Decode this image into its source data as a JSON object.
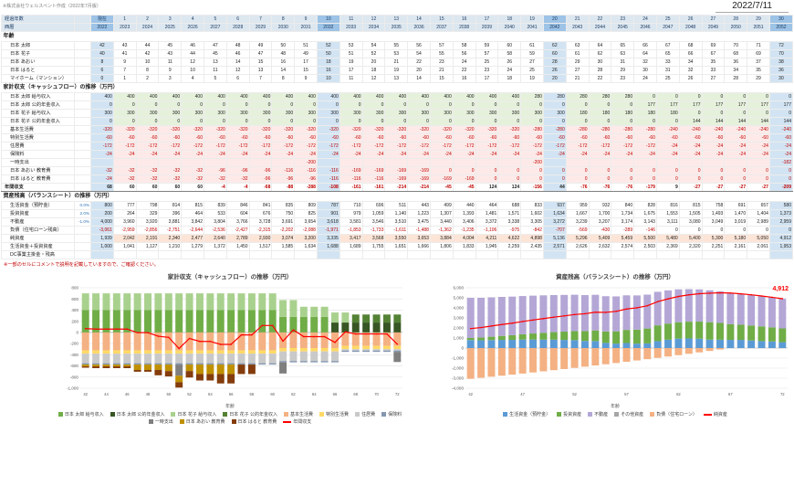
{
  "header": {
    "credit": "※株式会社ウェルスペント作成（2022年7月版）",
    "date": "2022/7/11"
  },
  "table": {
    "row_labels": {
      "elapsed": "経過年数",
      "year": "西暦",
      "age_section": "年齢"
    },
    "elapsed": [
      "現在",
      "1",
      "2",
      "3",
      "4",
      "5",
      "6",
      "7",
      "8",
      "9",
      "10",
      "11",
      "12",
      "13",
      "14",
      "15",
      "16",
      "17",
      "18",
      "19",
      "20",
      "21",
      "22",
      "23",
      "24",
      "25",
      "26",
      "27",
      "28",
      "29",
      "30"
    ],
    "years": [
      "2022",
      "2023",
      "2024",
      "2025",
      "2026",
      "2027",
      "2028",
      "2029",
      "2030",
      "2031",
      "2032",
      "2033",
      "2034",
      "2035",
      "2036",
      "2037",
      "2038",
      "2039",
      "2040",
      "2041",
      "2042",
      "2043",
      "2044",
      "2045",
      "2046",
      "2047",
      "2048",
      "2049",
      "2050",
      "2051",
      "2052"
    ],
    "highlight_cols": [
      0,
      10,
      20,
      30
    ],
    "age_rows": [
      {
        "label": "日本 太郎",
        "values": [
          42,
          43,
          44,
          45,
          46,
          47,
          48,
          49,
          50,
          51,
          52,
          53,
          54,
          55,
          56,
          57,
          58,
          59,
          60,
          61,
          62,
          63,
          64,
          65,
          66,
          67,
          68,
          69,
          70,
          71,
          72
        ]
      },
      {
        "label": "日本 花子",
        "values": [
          40,
          41,
          42,
          43,
          44,
          45,
          46,
          47,
          48,
          49,
          50,
          51,
          52,
          53,
          54,
          55,
          56,
          57,
          58,
          59,
          60,
          61,
          62,
          63,
          64,
          65,
          66,
          67,
          68,
          69,
          70
        ]
      },
      {
        "label": "日本 あおい",
        "values": [
          8,
          9,
          10,
          11,
          12,
          13,
          14,
          15,
          16,
          17,
          18,
          19,
          20,
          21,
          22,
          23,
          24,
          25,
          26,
          27,
          28,
          29,
          30,
          31,
          32,
          33,
          34,
          35,
          36,
          37,
          38
        ]
      },
      {
        "label": "日本 はると",
        "values": [
          6,
          7,
          8,
          9,
          10,
          11,
          12,
          13,
          14,
          15,
          16,
          17,
          18,
          19,
          20,
          21,
          22,
          23,
          24,
          25,
          26,
          27,
          28,
          29,
          30,
          31,
          32,
          33,
          34,
          35,
          36
        ]
      },
      {
        "label": "マイホーム（マンション）",
        "values": [
          0,
          1,
          2,
          3,
          4,
          5,
          6,
          7,
          8,
          9,
          10,
          11,
          12,
          13,
          14,
          15,
          16,
          17,
          18,
          19,
          20,
          21,
          22,
          23,
          24,
          25,
          26,
          27,
          28,
          29,
          30
        ]
      }
    ],
    "cashflow": {
      "title": "家計収支（キャッシュフロー）の推移（万円）",
      "income_rows": [
        {
          "label": "日本 太郎 給与収入",
          "ref": "chart_data.cashflow_chart.series.0.values"
        },
        {
          "label": "日本 太郎 公的年金収入",
          "ref": "chart_data.cashflow_chart.series.1.values"
        },
        {
          "label": "日本 花子 給与収入",
          "ref": "chart_data.cashflow_chart.series.2.values"
        },
        {
          "label": "日本 花子 公的年金収入",
          "ref": "chart_data.cashflow_chart.series.3.values"
        }
      ],
      "expense_rows": [
        {
          "label": "基本生活費",
          "ref": "chart_data.cashflow_chart.series.4.values"
        },
        {
          "label": "特別生活費",
          "ref": "chart_data.cashflow_chart.series.5.values"
        },
        {
          "label": "住居費",
          "ref": "chart_data.cashflow_chart.series.6.values"
        },
        {
          "label": "保険料",
          "ref": "chart_data.cashflow_chart.series.7.values"
        },
        {
          "label": "一時支出",
          "ref": "chart_data.cashflow_chart.series.8.values"
        },
        {
          "label": "日本 あおい 教育費",
          "ref": "chart_data.cashflow_chart.series.9.values"
        },
        {
          "label": "日本 はると 教育費",
          "ref": "chart_data.cashflow_chart.series.10.values"
        }
      ],
      "total_row": {
        "label": "年間収支",
        "ref": "chart_data.cashflow_chart.line.values"
      }
    },
    "balance": {
      "title": "資産残高（バランスシート）の推移（万円）",
      "rows": [
        {
          "label": "生活資金（預貯金）",
          "rate": "0.0%",
          "ref": "chart_data.balance_chart.series.0.values"
        },
        {
          "label": "投資資産",
          "rate": "2.0%",
          "ref": "chart_data.balance_chart.series.1.values"
        },
        {
          "label": "不動産",
          "rate": "-1.0%",
          "ref": "chart_data.balance_chart.series.2.values"
        },
        {
          "label": "負債（住宅ローン残高）",
          "rate": "",
          "ref": "chart_data.balance_chart.series.4.values"
        },
        {
          "label": "純資産",
          "rate": "",
          "ref": "chart_data.balance_chart.line.values",
          "emphasis": true
        },
        {
          "label": "生活資金＋投資資産",
          "rate": "",
          "values": [
            1000,
            1041,
            1127,
            1210,
            1279,
            1372,
            1450,
            1517,
            1585,
            1634,
            1688,
            1689,
            1755,
            1651,
            1666,
            1806,
            1833,
            1945,
            2259,
            2435,
            2571,
            2626,
            2632,
            2574,
            2503,
            2369,
            2320,
            2251,
            2161,
            2061,
            1953
          ]
        },
        {
          "label": "DC事業主掛金・残高",
          "rate": "",
          "values": null
        }
      ]
    },
    "footnote": "※一部のセルにコメントで説明を記載していますので、ご確認ください。"
  },
  "chart_data": {
    "cashflow_chart": {
      "type": "bar",
      "stacked": true,
      "title": "家計収支（キャッシュフロー）の推移（万円）",
      "xlabel": "年齢",
      "x": [
        42,
        43,
        44,
        45,
        46,
        47,
        48,
        49,
        50,
        51,
        52,
        53,
        54,
        55,
        56,
        57,
        58,
        59,
        60,
        61,
        62,
        63,
        64,
        65,
        66,
        67,
        68,
        69,
        70,
        71,
        72
      ],
      "ylim": [
        -1000,
        800
      ],
      "ystep": 200,
      "xtick_every": 2,
      "grid": true,
      "legend_position": "bottom",
      "series": [
        {
          "name": "日本 太郎 給与収入",
          "color": "#70ad47",
          "values": [
            400,
            400,
            400,
            400,
            400,
            400,
            400,
            400,
            400,
            400,
            400,
            400,
            400,
            400,
            400,
            400,
            400,
            400,
            400,
            280,
            280,
            280,
            280,
            280,
            0,
            0,
            0,
            0,
            0,
            0,
            0
          ]
        },
        {
          "name": "日本 太郎 公的年金収入",
          "color": "#375623",
          "values": [
            0,
            0,
            0,
            0,
            0,
            0,
            0,
            0,
            0,
            0,
            0,
            0,
            0,
            0,
            0,
            0,
            0,
            0,
            0,
            0,
            0,
            0,
            0,
            0,
            177,
            177,
            177,
            177,
            177,
            177,
            177
          ]
        },
        {
          "name": "日本 花子 給与収入",
          "color": "#a9d18e",
          "values": [
            300,
            300,
            300,
            300,
            300,
            300,
            300,
            300,
            300,
            300,
            300,
            300,
            300,
            300,
            300,
            300,
            300,
            300,
            300,
            300,
            300,
            180,
            180,
            180,
            180,
            180,
            0,
            0,
            0,
            0,
            0
          ]
        },
        {
          "name": "日本 花子 公的年金収入",
          "color": "#548235",
          "values": [
            0,
            0,
            0,
            0,
            0,
            0,
            0,
            0,
            0,
            0,
            0,
            0,
            0,
            0,
            0,
            0,
            0,
            0,
            0,
            0,
            0,
            0,
            0,
            0,
            0,
            0,
            144,
            144,
            144,
            144,
            144
          ]
        },
        {
          "name": "基本生活費",
          "color": "#f4b183",
          "values": [
            -320,
            -320,
            -320,
            -320,
            -320,
            -320,
            -320,
            -320,
            -320,
            -320,
            -320,
            -320,
            -320,
            -320,
            -320,
            -320,
            -320,
            -320,
            -320,
            -280,
            -280,
            -280,
            -280,
            -280,
            -280,
            -240,
            -240,
            -240,
            -240,
            -240,
            -240
          ]
        },
        {
          "name": "特別生活費",
          "color": "#ffd966",
          "values": [
            -60,
            -60,
            -60,
            -60,
            -60,
            -60,
            -60,
            -60,
            -60,
            -60,
            -60,
            -60,
            -60,
            -60,
            -60,
            -60,
            -60,
            -60,
            -60,
            -60,
            -60,
            -60,
            -60,
            -60,
            -60,
            -60,
            -60,
            -60,
            -60,
            -60,
            -60
          ]
        },
        {
          "name": "住居費",
          "color": "#c9c9c9",
          "values": [
            -172,
            -172,
            -172,
            -172,
            -172,
            -172,
            -172,
            -172,
            -172,
            -172,
            -172,
            -172,
            -172,
            -172,
            -172,
            -172,
            -172,
            -172,
            -172,
            -172,
            -172,
            -172,
            -172,
            -172,
            -172,
            -24,
            -24,
            -24,
            -24,
            -24,
            -24
          ]
        },
        {
          "name": "保険料",
          "color": "#8497b0",
          "values": [
            -24,
            -24,
            -24,
            -24,
            -24,
            -24,
            -24,
            -24,
            -24,
            -24,
            -24,
            -24,
            -24,
            -24,
            -24,
            -24,
            -24,
            -24,
            -24,
            -24,
            -24,
            -24,
            -24,
            -24,
            -24,
            -24,
            -24,
            -24,
            -24,
            -24,
            -24
          ]
        },
        {
          "name": "一時支出",
          "color": "#7f7f7f",
          "values": [
            null,
            null,
            null,
            null,
            null,
            null,
            null,
            null,
            null,
            -200,
            null,
            null,
            null,
            null,
            null,
            null,
            null,
            null,
            null,
            -200,
            null,
            null,
            null,
            null,
            null,
            null,
            null,
            null,
            null,
            null,
            -182
          ]
        },
        {
          "name": "日本 あおい 教育費",
          "color": "#bf9000",
          "values": [
            -32,
            -32,
            -32,
            -32,
            -32,
            -96,
            -96,
            -96,
            -116,
            -116,
            -116,
            -169,
            -169,
            -169,
            -169,
            0,
            0,
            0,
            0,
            0,
            0,
            0,
            0,
            0,
            0,
            0,
            0,
            0,
            0,
            0,
            0
          ]
        },
        {
          "name": "日本 はると 教育費",
          "color": "#843c0c",
          "values": [
            -24,
            -32,
            -32,
            -32,
            -32,
            -32,
            -32,
            -96,
            -96,
            -96,
            -116,
            -116,
            -116,
            -169,
            -169,
            -169,
            -169,
            0,
            0,
            0,
            0,
            0,
            0,
            0,
            0,
            0,
            0,
            0,
            0,
            0,
            0
          ]
        }
      ],
      "line": {
        "name": "年間収支",
        "color": "#ff0000",
        "values": [
          68,
          60,
          60,
          60,
          60,
          -4,
          -4,
          -68,
          -88,
          -288,
          -108,
          -161,
          -161,
          -214,
          -214,
          -45,
          -45,
          124,
          124,
          -156,
          44,
          -76,
          -76,
          -76,
          -179,
          9,
          -27,
          -27,
          -27,
          -27,
          -209
        ]
      }
    },
    "balance_chart": {
      "type": "bar",
      "stacked": true,
      "title": "資産残高（バランスシート）の推移（万円）",
      "xlabel": "年齢",
      "x": [
        42,
        43,
        44,
        45,
        46,
        47,
        48,
        49,
        50,
        51,
        52,
        53,
        54,
        55,
        56,
        57,
        58,
        59,
        60,
        61,
        62,
        63,
        64,
        65,
        66,
        67,
        68,
        69,
        70,
        71,
        72
      ],
      "ylim": [
        -4000,
        6000
      ],
      "ystep": 1000,
      "xtick_every": 5,
      "grid": true,
      "legend_position": "bottom",
      "annotation": {
        "text": "4,912",
        "color": "#ff0000"
      },
      "series": [
        {
          "name": "生活資金（預貯金）",
          "color": "#5b9bd5",
          "values": [
            800,
            777,
            798,
            814,
            815,
            839,
            846,
            841,
            835,
            809,
            787,
            710,
            696,
            511,
            443,
            499,
            440,
            464,
            688,
            833,
            937,
            959,
            932,
            840,
            828,
            816,
            815,
            758,
            691,
            657,
            580
          ]
        },
        {
          "name": "投資資産",
          "color": "#70ad47",
          "values": [
            200,
            264,
            329,
            396,
            464,
            533,
            604,
            676,
            750,
            825,
            901,
            979,
            1059,
            1140,
            1223,
            1307,
            1393,
            1481,
            1571,
            1602,
            1634,
            1667,
            1700,
            1734,
            1675,
            1553,
            1505,
            1493,
            1470,
            1404,
            1373
          ]
        },
        {
          "name": "不動産",
          "color": "#b4a7d6",
          "values": [
            4000,
            3960,
            3920,
            3881,
            3842,
            3804,
            3766,
            3728,
            3691,
            3654,
            3618,
            3581,
            3546,
            3510,
            3475,
            3440,
            3406,
            3372,
            3338,
            3305,
            3272,
            3239,
            3207,
            3174,
            3143,
            3111,
            3080,
            3049,
            3019,
            2989,
            2959
          ]
        },
        {
          "name": "その他資産",
          "color": "#a6a6a6",
          "values": [
            0,
            0,
            0,
            0,
            0,
            0,
            0,
            0,
            0,
            0,
            0,
            0,
            0,
            0,
            0,
            0,
            0,
            0,
            0,
            0,
            0,
            0,
            0,
            0,
            0,
            0,
            0,
            0,
            0,
            0,
            0
          ]
        },
        {
          "name": "負債（住宅ローン）",
          "color": "#f4b183",
          "values": [
            -3061,
            -2959,
            -2856,
            -2751,
            -2644,
            -2536,
            -2427,
            -2315,
            -2202,
            -2088,
            -1971,
            -1853,
            -1733,
            -1611,
            -1488,
            -1362,
            -1235,
            -1106,
            -975,
            -842,
            -707,
            -569,
            -430,
            -289,
            -146,
            0,
            0,
            0,
            0,
            0,
            0
          ]
        }
      ],
      "line": {
        "name": "純資産",
        "color": "#ff0000",
        "values": [
          1939,
          2042,
          2191,
          2340,
          2477,
          2640,
          2789,
          2930,
          3074,
          3200,
          3335,
          3417,
          3568,
          3550,
          3653,
          3884,
          4004,
          4211,
          4622,
          4898,
          5136,
          5296,
          5409,
          5459,
          5500,
          5480,
          5400,
          5300,
          5180,
          5050,
          4912
        ]
      }
    }
  }
}
